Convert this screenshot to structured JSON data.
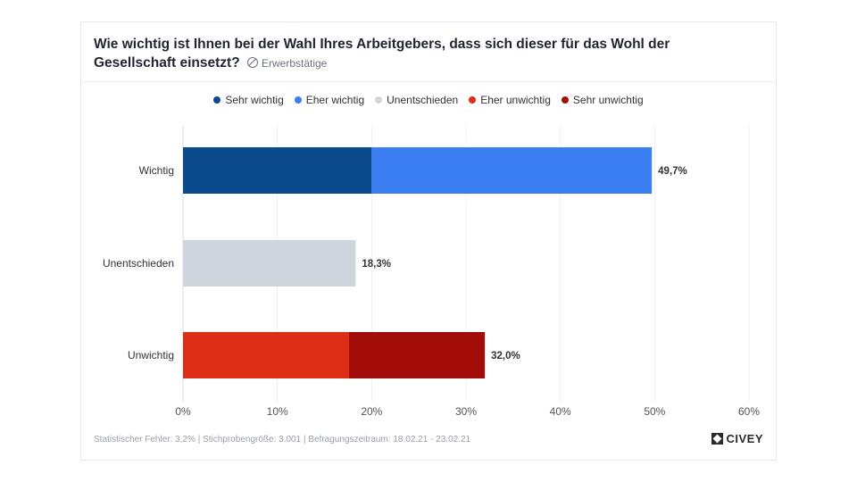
{
  "title": "Wie wichtig ist Ihnen bei der Wahl Ihres Arbeitgebers, dass sich dieser für das Wohl der Gesellschaft einsetzt?",
  "subtitle": "Erwerbstätige",
  "footer": "Statistischer Fehler: 3,2% | Stichprobengröße: 3.001 | Befragungszeitraum: 18.02.21 - 23.02.21",
  "logo": "CIVEY",
  "colors": {
    "sehr_wichtig": "#0c4a8e",
    "eher_wichtig": "#3b7ef2",
    "unentschieden": "#cdd5dd",
    "eher_unwichtig": "#de2f16",
    "sehr_unwichtig": "#a20d0a"
  },
  "legend": [
    {
      "label": "Sehr wichtig",
      "color": "#0c4a8e"
    },
    {
      "label": "Eher wichtig",
      "color": "#3b7ef2"
    },
    {
      "label": "Unentschieden",
      "color": "#cdd5dd"
    },
    {
      "label": "Eher unwichtig",
      "color": "#de2f16"
    },
    {
      "label": "Sehr unwichtig",
      "color": "#a20d0a"
    }
  ],
  "chart_data": {
    "type": "bar",
    "orientation": "horizontal",
    "stacked": true,
    "categories": [
      "Wichtig",
      "Unentschieden",
      "Unwichtig"
    ],
    "series": [
      {
        "name": "Sehr wichtig",
        "values": [
          20.0,
          0,
          0
        ],
        "color": "#0c4a8e"
      },
      {
        "name": "Eher wichtig",
        "values": [
          29.7,
          0,
          0
        ],
        "color": "#3b7ef2"
      },
      {
        "name": "Unentschieden",
        "values": [
          0,
          18.3,
          0
        ],
        "color": "#cdd5dd"
      },
      {
        "name": "Eher unwichtig",
        "values": [
          0,
          0,
          17.6
        ],
        "color": "#de2f16"
      },
      {
        "name": "Sehr unwichtig",
        "values": [
          0,
          0,
          14.4
        ],
        "color": "#a20d0a"
      }
    ],
    "totals": [
      49.7,
      18.3,
      32.0
    ],
    "total_labels": [
      "49,7%",
      "18,3%",
      "32,0%"
    ],
    "xlim": [
      0,
      60
    ],
    "xticks": [
      0,
      10,
      20,
      30,
      40,
      50,
      60
    ],
    "xtick_labels": [
      "0%",
      "10%",
      "20%",
      "30%",
      "40%",
      "50%",
      "60%"
    ],
    "grid": true,
    "legend_position": "top-center"
  }
}
